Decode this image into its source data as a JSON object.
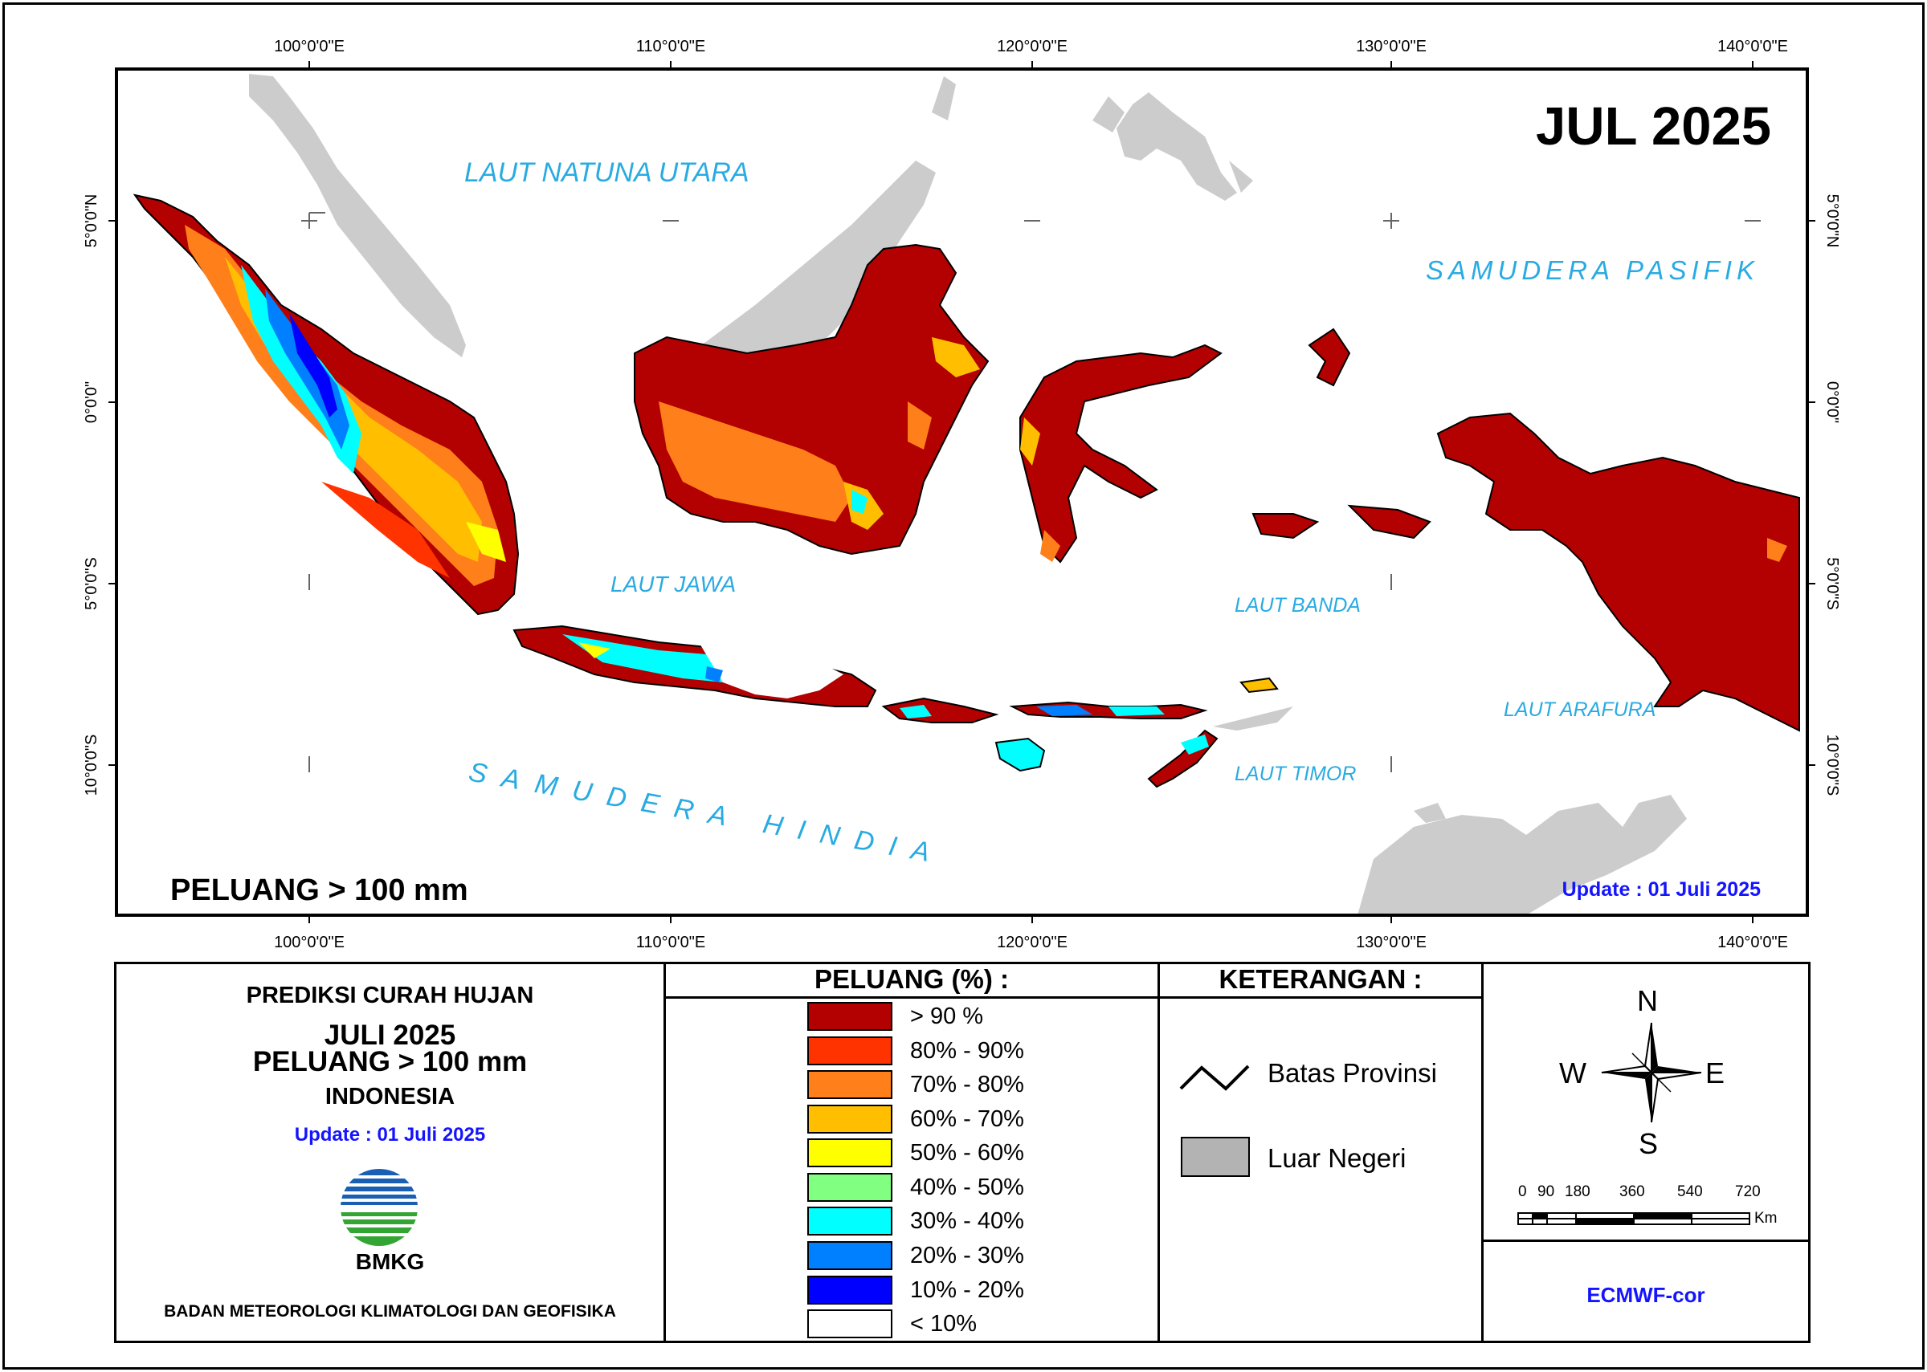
{
  "map": {
    "month_label": "JUL 2025",
    "peluang_label": "PELUANG > 100 mm",
    "update_label": "Update : 01 Juli  2025",
    "lon_ticks": [
      "100°0'0\"E",
      "110°0'0\"E",
      "120°0'0\"E",
      "130°0'0\"E",
      "140°0'0\"E"
    ],
    "lat_ticks": [
      "5°0'0\"N",
      "0°0'0\"",
      "5°0'0\"S",
      "10°0'0\"S"
    ],
    "seas": [
      "LAUT NATUNA UTARA",
      "SAMUDERA PASIFIK",
      "LAUT JAWA",
      "LAUT BANDA",
      "LAUT ARAFURA",
      "LAUT TIMOR",
      "SAMUDERA HINDIA"
    ]
  },
  "info_panel": {
    "title": "PREDIKSI CURAH HUJAN",
    "month": "JULI 2025",
    "threshold": "PELUANG > 100 mm",
    "region": "INDONESIA",
    "update": "Update : 01 Juli  2025",
    "logo_text": "BMKG",
    "agency": "BADAN METEOROLOGI KLIMATOLOGI DAN GEOFISIKA"
  },
  "legend": {
    "title": "PELUANG (%) :",
    "items": [
      {
        "label": "> 90 %",
        "color": "#b30000"
      },
      {
        "label": "80% - 90%",
        "color": "#ff3300"
      },
      {
        "label": "70% - 80%",
        "color": "#ff7f1a"
      },
      {
        "label": "60% - 70%",
        "color": "#ffbf00"
      },
      {
        "label": "50% - 60%",
        "color": "#ffff00"
      },
      {
        "label": "40% - 50%",
        "color": "#80ff80"
      },
      {
        "label": "30% - 40%",
        "color": "#00ffff"
      },
      {
        "label": "20% - 30%",
        "color": "#0080ff"
      },
      {
        "label": "10% - 20%",
        "color": "#0000ff"
      },
      {
        "label": "< 10%",
        "color": "#ffffff"
      }
    ]
  },
  "keterangan": {
    "title": "KETERANGAN :",
    "batas_label": "Batas Provinsi",
    "luar_label": "Luar Negeri",
    "luar_color": "#b3b3b3"
  },
  "compass": {
    "n": "N",
    "s": "S",
    "e": "E",
    "w": "W"
  },
  "scale": {
    "ticks": [
      "0",
      "90",
      "180",
      "360",
      "540",
      "720"
    ],
    "unit": "Km"
  },
  "model": "ECMWF-cor",
  "colors": {
    "sea_label": "#29abe2",
    "update": "#1414ff",
    "foreign_land": "#cccccc"
  }
}
